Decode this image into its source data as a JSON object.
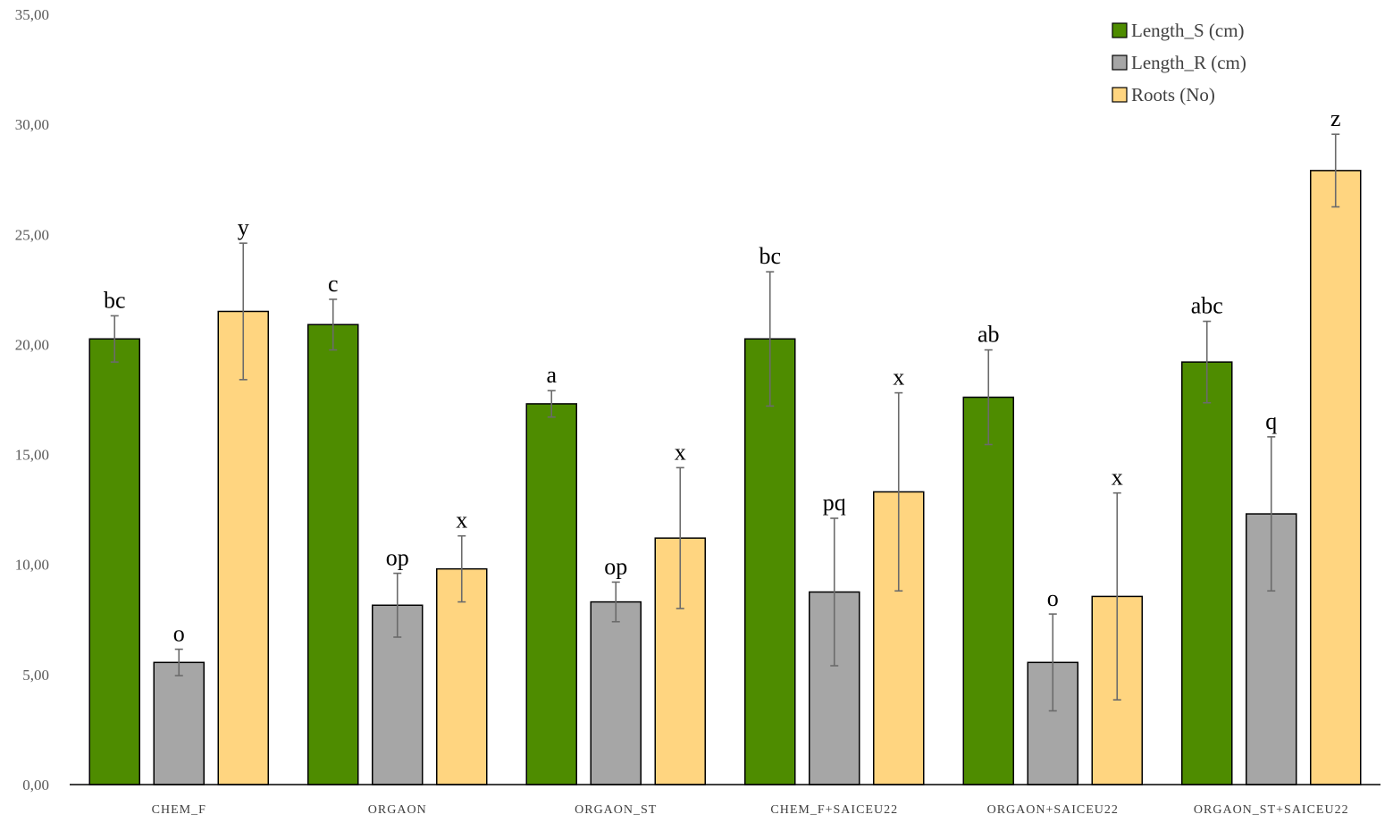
{
  "chart_data": {
    "type": "bar",
    "title": "",
    "xlabel": "",
    "ylabel": "",
    "ylim": [
      0,
      35
    ],
    "yticks": [
      "0,00",
      "5,00",
      "10,00",
      "15,00",
      "20,00",
      "25,00",
      "30,00",
      "35,00"
    ],
    "grid": false,
    "legend_position": "top-right",
    "categories": [
      "CHEM_F",
      "ORGAON",
      "ORGAON_ST",
      "CHEM_F+SAICEU22",
      "ORGAON+SAICEU22",
      "ORGAON_ST+SAICEU22"
    ],
    "series": [
      {
        "name": "Length_S (cm)",
        "color": "#4e8c00",
        "values": [
          20.25,
          20.9,
          17.3,
          20.25,
          17.6,
          19.2
        ],
        "errors": [
          1.05,
          1.15,
          0.6,
          3.05,
          2.15,
          1.85
        ],
        "labels": [
          "bc",
          "c",
          "a",
          "bc",
          "ab",
          "abc"
        ]
      },
      {
        "name": "Length_R  (cm)",
        "color": "#a6a6a6",
        "values": [
          5.55,
          8.15,
          8.3,
          8.75,
          5.55,
          12.3
        ],
        "errors": [
          0.6,
          1.45,
          0.9,
          3.35,
          2.2,
          3.5
        ],
        "labels": [
          "o",
          "op",
          "op",
          "pq",
          "o",
          "q"
        ]
      },
      {
        "name": "Roots (No)",
        "color": "#ffd580",
        "values": [
          21.5,
          9.8,
          11.2,
          13.3,
          8.55,
          27.9
        ],
        "errors": [
          3.1,
          1.5,
          3.2,
          4.5,
          4.7,
          1.65
        ],
        "labels": [
          "y",
          "x",
          "x",
          "x",
          "x",
          "z"
        ]
      }
    ]
  }
}
